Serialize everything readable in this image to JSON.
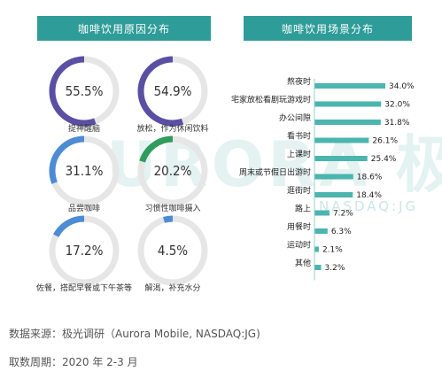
{
  "left_panel": {
    "title": "咖啡饮用原因分布"
  },
  "right_panel": {
    "title": "咖啡饮用场景分布"
  },
  "watermark": {
    "brand": "URORA 极光",
    "ticker": "NASDAQ:JG"
  },
  "colors": {
    "teal": "#2e9c98",
    "gauge_track": "#e6e6e6",
    "bar": "#4bb5ae",
    "bar_light": "#a5dcd7",
    "purple": "#5a4fa3",
    "green": "#2e9c5a",
    "blue": "#4d8bd4"
  },
  "chart_data": [
    {
      "type": "gauge",
      "title": "咖啡饮用原因分布",
      "items": [
        {
          "label": "提神醒脑",
          "value": 55.5,
          "display": "55.5%",
          "color": "#5a4fa3"
        },
        {
          "label": "放松，作为休闲饮料",
          "value": 54.9,
          "display": "54.9%",
          "color": "#5a4fa3"
        },
        {
          "label": "品尝咖啡",
          "value": 31.1,
          "display": "31.1%",
          "color": "#4d8bd4"
        },
        {
          "label": "习惯性咖啡摄入",
          "value": 20.2,
          "display": "20.2%",
          "color": "#2e9c5a"
        },
        {
          "label": "佐餐，搭配早餐或下午茶等",
          "value": 17.2,
          "display": "17.2%",
          "color": "#4d8bd4"
        },
        {
          "label": "解渴，补充水分",
          "value": 4.5,
          "display": "4.5%",
          "color": "#4d8bd4"
        }
      ]
    },
    {
      "type": "bar",
      "orientation": "horizontal",
      "title": "咖啡饮用场景分布",
      "categories": [
        "熬夜时",
        "宅家放松看剧玩游戏时",
        "办公间隙",
        "看书时",
        "上课时",
        "周末或节假日出游时",
        "逛街时",
        "路上",
        "用餐时",
        "运动时",
        "其他"
      ],
      "values": [
        34.0,
        32.0,
        31.8,
        26.1,
        25.4,
        18.6,
        18.4,
        7.2,
        6.3,
        2.1,
        3.2
      ],
      "value_labels": [
        "34.0%",
        "32.0%",
        "31.8%",
        "26.1%",
        "25.4%",
        "18.6%",
        "18.4%",
        "7.2%",
        "6.3%",
        "2.1%",
        "3.2%"
      ],
      "xlim": [
        0,
        34
      ]
    }
  ],
  "footer": {
    "source": "数据来源：极光调研（Aurora Mobile, NASDAQ:JG)",
    "period": "取数周期：2020 年 2-3 月"
  }
}
